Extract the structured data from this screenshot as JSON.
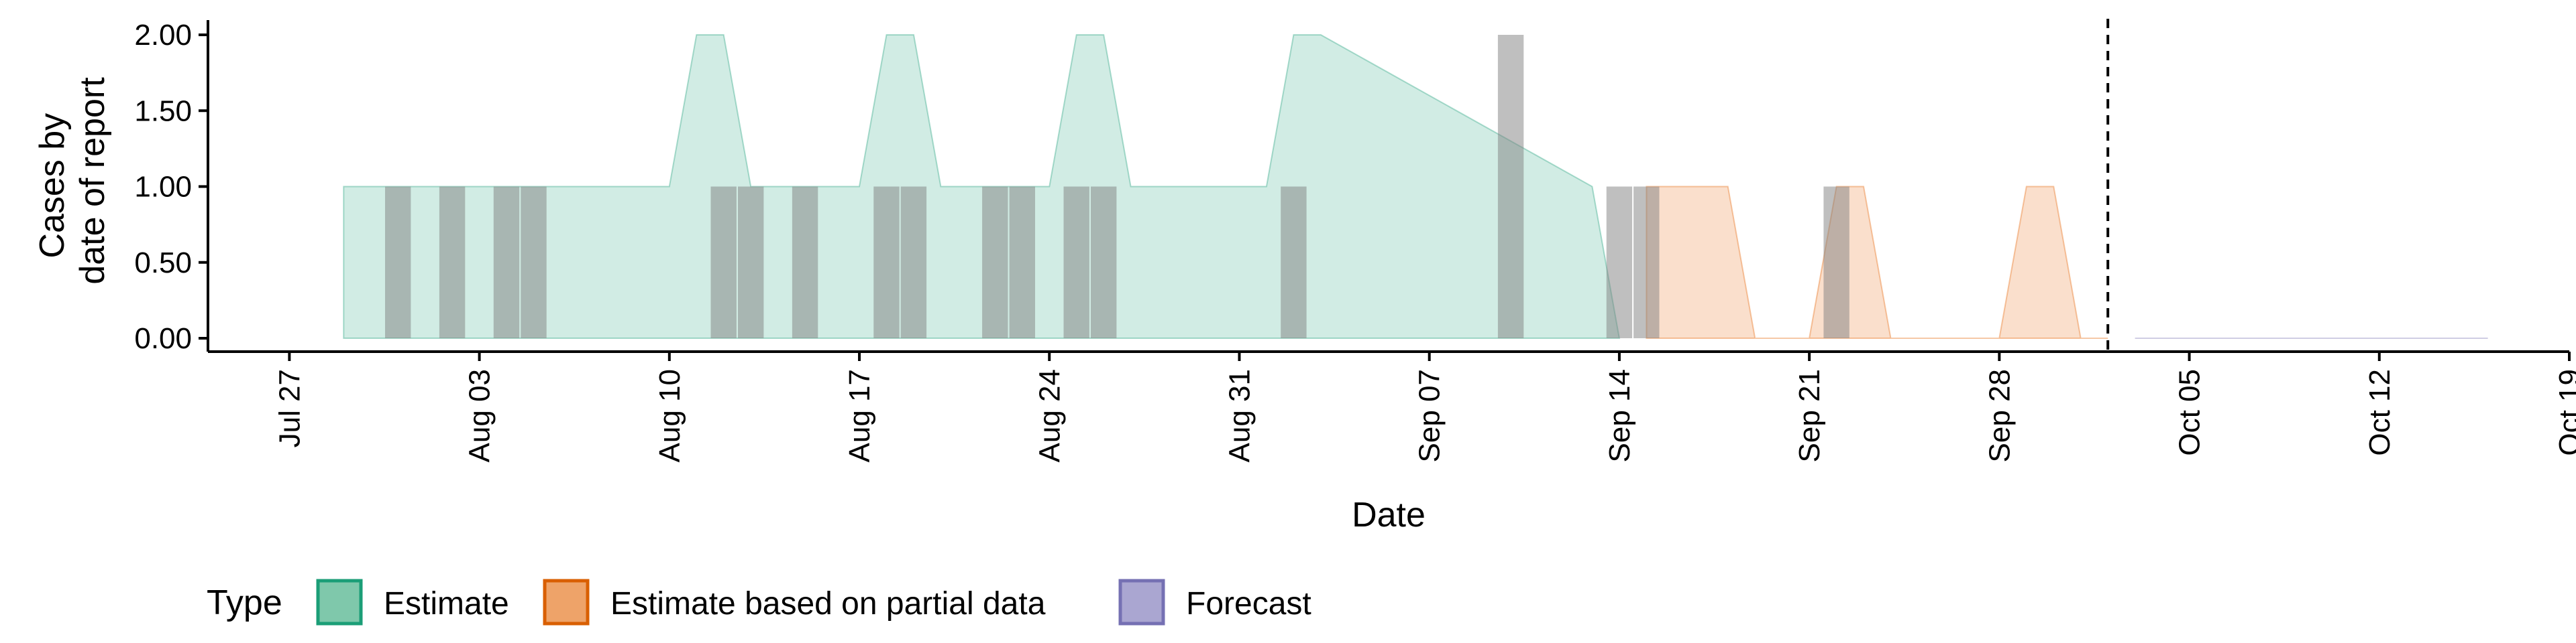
{
  "chart_data": {
    "type": "area",
    "xlabel": "Date",
    "ylabel_lines": [
      "Cases by",
      "date of report"
    ],
    "ylim": [
      0,
      2
    ],
    "y_ticks": [
      0,
      0.5,
      1,
      1.5,
      2
    ],
    "y_tick_labels": [
      "0.00",
      "0.50",
      "1.00",
      "1.50",
      "2.00"
    ],
    "x_range": [
      "2020-07-24",
      "2020-10-19"
    ],
    "x_ticks": [
      "2020-07-27",
      "2020-08-03",
      "2020-08-10",
      "2020-08-17",
      "2020-08-24",
      "2020-08-31",
      "2020-09-07",
      "2020-09-14",
      "2020-09-21",
      "2020-09-28",
      "2020-10-05",
      "2020-10-12",
      "2020-10-19"
    ],
    "x_tick_labels": [
      "Jul 27",
      "Aug 03",
      "Aug 10",
      "Aug 17",
      "Aug 24",
      "Aug 31",
      "Sep 07",
      "Sep 14",
      "Sep 21",
      "Sep 28",
      "Oct 05",
      "Oct 12",
      "Oct 19"
    ],
    "forecast_line_date": "2020-10-02",
    "colors": {
      "estimate_fill": "#1b9e77",
      "partial_fill": "#e66101",
      "forecast_fill": "#7570b3",
      "bars": "#808080",
      "legend_estimate": "#7fc8ab",
      "legend_estimate_border": "#1b9e77",
      "legend_partial": "#eea369",
      "legend_partial_border": "#d95f02",
      "legend_forecast": "#aaa6d1",
      "legend_forecast_border": "#7570b3"
    },
    "series": [
      {
        "type": "Estimate",
        "x": [
          "2020-07-29",
          "2020-08-10",
          "2020-08-11",
          "2020-08-12",
          "2020-08-13",
          "2020-08-16",
          "2020-08-17",
          "2020-08-18",
          "2020-08-19",
          "2020-08-20",
          "2020-08-23",
          "2020-08-24",
          "2020-08-25",
          "2020-08-26",
          "2020-08-27",
          "2020-08-31",
          "2020-09-01",
          "2020-09-02",
          "2020-09-03",
          "2020-09-13",
          "2020-09-14"
        ],
        "lower": [
          0,
          0,
          0,
          0,
          0,
          0,
          0,
          0,
          0,
          0,
          0,
          0,
          0,
          0,
          0,
          0,
          0,
          0,
          0,
          0,
          0
        ],
        "upper": [
          1,
          1,
          2,
          2,
          1,
          1,
          1,
          2,
          2,
          1,
          1,
          1,
          2,
          2,
          1,
          1,
          1,
          2,
          2,
          1,
          0
        ]
      },
      {
        "type": "Estimate based on partial data",
        "x": [
          "2020-09-15",
          "2020-09-16",
          "2020-09-17",
          "2020-09-18",
          "2020-09-19",
          "2020-09-20",
          "2020-09-21",
          "2020-09-22",
          "2020-09-23",
          "2020-09-24",
          "2020-09-25",
          "2020-09-26",
          "2020-09-27",
          "2020-09-28",
          "2020-09-29",
          "2020-09-30",
          "2020-10-01",
          "2020-10-02"
        ],
        "lower": [
          0,
          0,
          0,
          0,
          0,
          0,
          0,
          0,
          0,
          0,
          0,
          0,
          0,
          0,
          0,
          0,
          0,
          0
        ],
        "upper": [
          1,
          1,
          1,
          1,
          0,
          0,
          0,
          1,
          1,
          0,
          0,
          0,
          0,
          0,
          1,
          1,
          0,
          0
        ]
      },
      {
        "type": "Forecast",
        "x": [
          "2020-10-03",
          "2020-10-16"
        ],
        "lower": [
          0,
          0
        ],
        "upper": [
          0,
          0
        ]
      }
    ],
    "bars": {
      "x": [
        "2020-07-31",
        "2020-08-02",
        "2020-08-04",
        "2020-08-05",
        "2020-08-12",
        "2020-08-13",
        "2020-08-15",
        "2020-08-18",
        "2020-08-19",
        "2020-08-22",
        "2020-08-23",
        "2020-08-25",
        "2020-08-26",
        "2020-09-02",
        "2020-09-10",
        "2020-09-14",
        "2020-09-15",
        "2020-09-22"
      ],
      "values": [
        1,
        1,
        1,
        1,
        1,
        1,
        1,
        1,
        1,
        1,
        1,
        1,
        1,
        1,
        2,
        1,
        1,
        1
      ]
    },
    "legend": {
      "title": "Type",
      "position": "bottom",
      "entries": [
        "Estimate",
        "Estimate based on partial data",
        "Forecast"
      ]
    },
    "grid": false
  }
}
